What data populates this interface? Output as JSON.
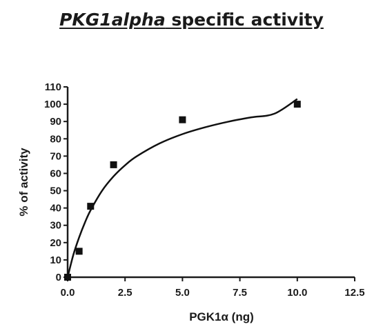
{
  "chart_data": {
    "type": "scatter",
    "title_italic": "PKG1alpha",
    "title_rest": " specific activity",
    "xlabel": "PGK1α (ng)",
    "ylabel": "% of activity",
    "xlim": [
      0,
      12.5
    ],
    "ylim": [
      0,
      110
    ],
    "xticks": [
      0.0,
      2.5,
      5.0,
      7.5,
      10.0,
      12.5
    ],
    "xtick_labels": [
      "0.0",
      "2.5",
      "5.0",
      "7.5",
      "10.0",
      "12.5"
    ],
    "yticks": [
      0,
      10,
      20,
      30,
      40,
      50,
      60,
      70,
      80,
      90,
      100,
      110
    ],
    "ytick_labels": [
      "0",
      "10",
      "20",
      "30",
      "40",
      "50",
      "60",
      "70",
      "80",
      "90",
      "100",
      "110"
    ],
    "grid": false,
    "points": [
      {
        "x": 0.0,
        "y": 0
      },
      {
        "x": 0.5,
        "y": 15
      },
      {
        "x": 1.0,
        "y": 41
      },
      {
        "x": 2.0,
        "y": 65
      },
      {
        "x": 5.0,
        "y": 91
      },
      {
        "x": 10.0,
        "y": 100
      }
    ],
    "fit_curve": {
      "x": [
        0.0,
        0.25,
        0.5,
        0.75,
        1.0,
        1.5,
        2.0,
        2.5,
        3.0,
        4.0,
        5.0,
        6.0,
        7.0,
        8.0,
        9.0,
        10.0
      ],
      "y": [
        0,
        13,
        23,
        31.5,
        38.7,
        50,
        58.3,
        64.7,
        69.8,
        77.3,
        82.7,
        86.7,
        89.9,
        92.4,
        94.5,
        103
      ]
    },
    "colors": {
      "marks": "#111111",
      "axes": "#1a1a1a"
    }
  }
}
